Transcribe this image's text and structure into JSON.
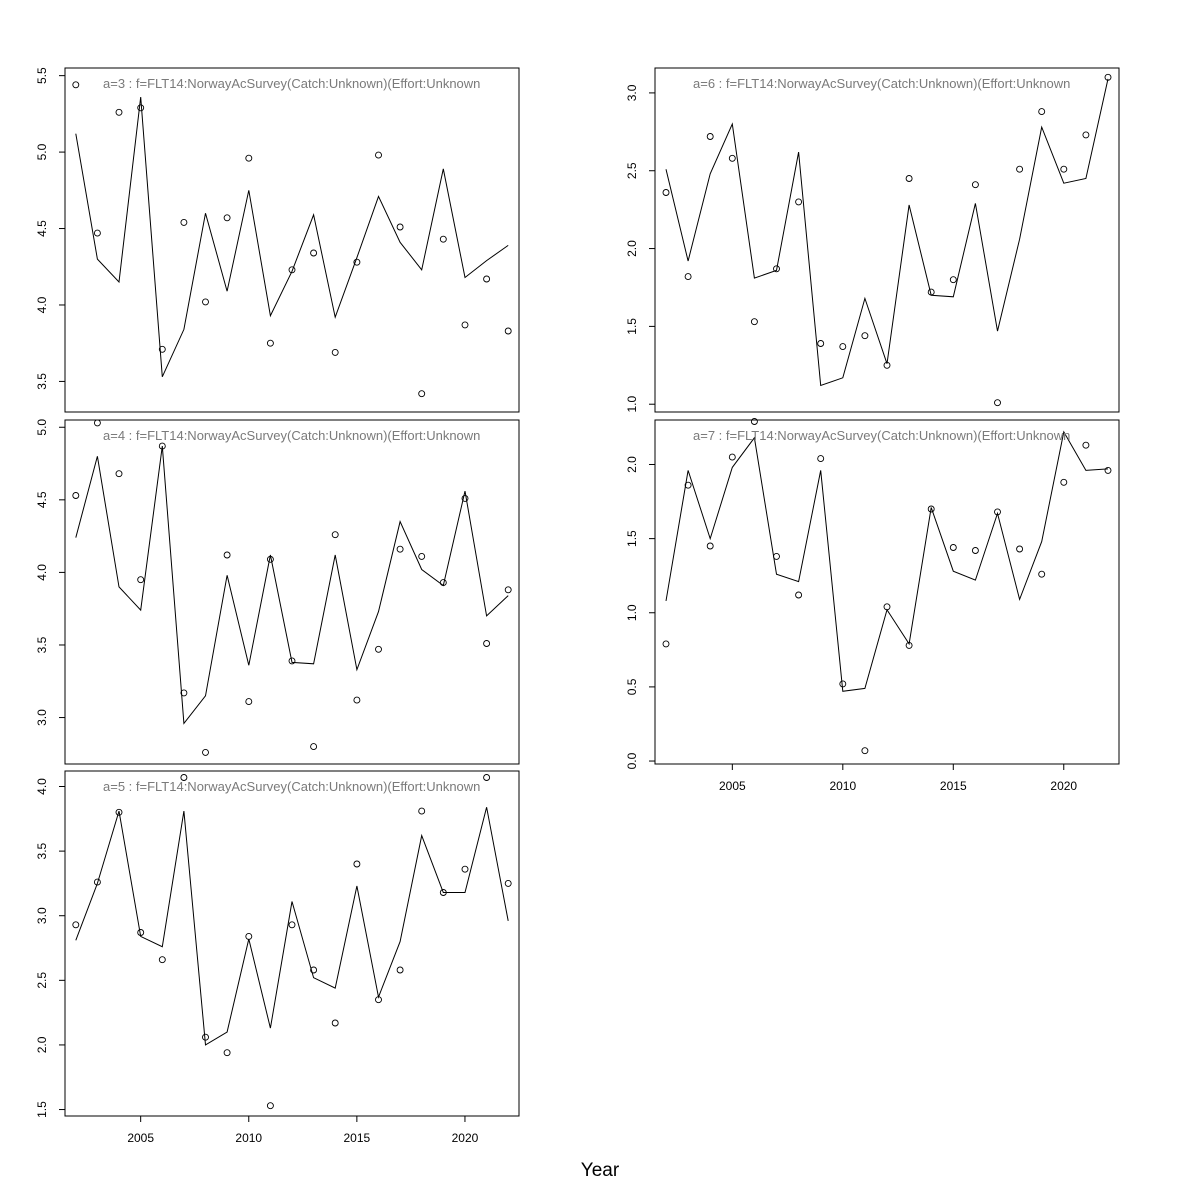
{
  "xlabel": "Year",
  "chart_data": [
    {
      "type": "line",
      "title": "a=3  :  f=FLT14:NorwayAcSurvey(Catch:Unknown)(Effort:Unknown",
      "xlim": [
        2001.5,
        2022.5
      ],
      "ylim": [
        3.3,
        5.55
      ],
      "yticks": [
        3.5,
        4.0,
        4.5,
        5.0,
        5.5
      ],
      "yticklabels": [
        "3.5",
        "4.0",
        "4.5",
        "5.0",
        "5.5"
      ],
      "xticks": [],
      "xticklabels": [],
      "x": [
        2002,
        2003,
        2004,
        2005,
        2006,
        2007,
        2008,
        2009,
        2010,
        2011,
        2012,
        2013,
        2014,
        2015,
        2016,
        2017,
        2018,
        2019,
        2020,
        2021,
        2022
      ],
      "series": [
        {
          "style": "points",
          "values": [
            5.44,
            4.47,
            5.26,
            5.29,
            3.71,
            4.54,
            4.02,
            4.57,
            4.96,
            3.75,
            4.23,
            4.34,
            3.69,
            4.28,
            4.98,
            4.51,
            3.42,
            4.43,
            3.87,
            4.17,
            3.83
          ]
        },
        {
          "style": "line",
          "values": [
            5.12,
            4.3,
            4.15,
            5.36,
            3.53,
            3.84,
            4.6,
            4.09,
            4.75,
            3.93,
            4.22,
            4.59,
            3.92,
            4.31,
            4.71,
            4.41,
            4.23,
            4.89,
            4.18,
            4.29,
            4.39
          ]
        }
      ]
    },
    {
      "type": "line",
      "title": "a=4  :  f=FLT14:NorwayAcSurvey(Catch:Unknown)(Effort:Unknown",
      "xlim": [
        2001.5,
        2022.5
      ],
      "ylim": [
        2.68,
        5.05
      ],
      "yticks": [
        3.0,
        3.5,
        4.0,
        4.5,
        5.0
      ],
      "yticklabels": [
        "3.0",
        "3.5",
        "4.0",
        "4.5",
        "5.0"
      ],
      "xticks": [],
      "xticklabels": [],
      "x": [
        2002,
        2003,
        2004,
        2005,
        2006,
        2007,
        2008,
        2009,
        2010,
        2011,
        2012,
        2013,
        2014,
        2015,
        2016,
        2017,
        2018,
        2019,
        2020,
        2021,
        2022
      ],
      "series": [
        {
          "style": "points",
          "values": [
            4.53,
            5.03,
            4.68,
            3.95,
            4.87,
            3.17,
            2.76,
            4.12,
            3.11,
            4.09,
            3.39,
            2.8,
            4.26,
            3.12,
            3.47,
            4.16,
            4.11,
            3.93,
            4.51,
            3.51,
            3.88
          ]
        },
        {
          "style": "line",
          "values": [
            4.24,
            4.8,
            3.9,
            3.74,
            4.87,
            2.96,
            3.15,
            3.98,
            3.36,
            4.12,
            3.38,
            3.37,
            4.12,
            3.33,
            3.73,
            4.35,
            4.02,
            3.91,
            4.56,
            3.7,
            3.84
          ]
        }
      ]
    },
    {
      "type": "line",
      "title": "a=5  :  f=FLT14:NorwayAcSurvey(Catch:Unknown)(Effort:Unknown",
      "xlim": [
        2001.5,
        2022.5
      ],
      "ylim": [
        1.45,
        4.12
      ],
      "yticks": [
        1.5,
        2.0,
        2.5,
        3.0,
        3.5,
        4.0
      ],
      "yticklabels": [
        "1.5",
        "2.0",
        "2.5",
        "3.0",
        "3.5",
        "4.0"
      ],
      "xticks": [
        2005,
        2010,
        2015,
        2020
      ],
      "xticklabels": [
        "2005",
        "2010",
        "2015",
        "2020"
      ],
      "x": [
        2002,
        2003,
        2004,
        2005,
        2006,
        2007,
        2008,
        2009,
        2010,
        2011,
        2012,
        2013,
        2014,
        2015,
        2016,
        2017,
        2018,
        2019,
        2020,
        2021,
        2022
      ],
      "series": [
        {
          "style": "points",
          "values": [
            2.93,
            3.26,
            3.8,
            2.87,
            2.66,
            4.07,
            2.06,
            1.94,
            2.84,
            1.53,
            2.93,
            2.58,
            2.17,
            3.4,
            2.35,
            2.58,
            3.81,
            3.18,
            3.36,
            4.07,
            3.25
          ]
        },
        {
          "style": "line",
          "values": [
            2.81,
            3.25,
            3.81,
            2.84,
            2.76,
            3.81,
            2.0,
            2.1,
            2.82,
            2.13,
            3.11,
            2.52,
            2.44,
            3.23,
            2.37,
            2.8,
            3.62,
            3.18,
            3.18,
            3.84,
            2.96
          ]
        }
      ]
    },
    {
      "type": "line",
      "title": "a=6  :  f=FLT14:NorwayAcSurvey(Catch:Unknown)(Effort:Unknown",
      "xlim": [
        2001.5,
        2022.5
      ],
      "ylim": [
        0.95,
        3.16
      ],
      "yticks": [
        1.0,
        1.5,
        2.0,
        2.5,
        3.0
      ],
      "yticklabels": [
        "1.0",
        "1.5",
        "2.0",
        "2.5",
        "3.0"
      ],
      "xticks": [],
      "xticklabels": [],
      "x": [
        2002,
        2003,
        2004,
        2005,
        2006,
        2007,
        2008,
        2009,
        2010,
        2011,
        2012,
        2013,
        2014,
        2015,
        2016,
        2017,
        2018,
        2019,
        2020,
        2021,
        2022
      ],
      "series": [
        {
          "style": "points",
          "values": [
            2.36,
            1.82,
            2.72,
            2.58,
            1.53,
            1.87,
            2.3,
            1.39,
            1.37,
            1.44,
            1.25,
            2.45,
            1.72,
            1.8,
            2.41,
            1.01,
            2.51,
            2.88,
            2.51,
            2.73,
            3.1
          ]
        },
        {
          "style": "line",
          "values": [
            2.51,
            1.92,
            2.48,
            2.8,
            1.81,
            1.86,
            2.62,
            1.12,
            1.17,
            1.68,
            1.26,
            2.28,
            1.7,
            1.69,
            2.29,
            1.47,
            2.06,
            2.78,
            2.42,
            2.45,
            3.09
          ]
        }
      ]
    },
    {
      "type": "line",
      "title": "a=7  :  f=FLT14:NorwayAcSurvey(Catch:Unknown)(Effort:Unknown",
      "xlim": [
        2001.5,
        2022.5
      ],
      "ylim": [
        -0.02,
        2.3
      ],
      "yticks": [
        0.0,
        0.5,
        1.0,
        1.5,
        2.0
      ],
      "yticklabels": [
        "0.0",
        "0.5",
        "1.0",
        "1.5",
        "2.0"
      ],
      "xticks": [
        2005,
        2010,
        2015,
        2020
      ],
      "xticklabels": [
        "2005",
        "2010",
        "2015",
        "2020"
      ],
      "x": [
        2002,
        2003,
        2004,
        2005,
        2006,
        2007,
        2008,
        2009,
        2010,
        2011,
        2012,
        2013,
        2014,
        2015,
        2016,
        2017,
        2018,
        2019,
        2020,
        2021,
        2022
      ],
      "series": [
        {
          "style": "points",
          "values": [
            0.79,
            1.86,
            1.45,
            2.05,
            2.29,
            1.38,
            1.12,
            2.04,
            0.52,
            0.07,
            1.04,
            0.78,
            1.7,
            1.44,
            1.42,
            1.68,
            1.43,
            1.26,
            1.88,
            2.13,
            1.96
          ]
        },
        {
          "style": "line",
          "values": [
            1.08,
            1.96,
            1.5,
            1.98,
            2.18,
            1.26,
            1.21,
            1.96,
            0.47,
            0.49,
            1.02,
            0.79,
            1.71,
            1.28,
            1.22,
            1.67,
            1.09,
            1.48,
            2.22,
            1.96,
            1.97
          ]
        }
      ]
    }
  ]
}
